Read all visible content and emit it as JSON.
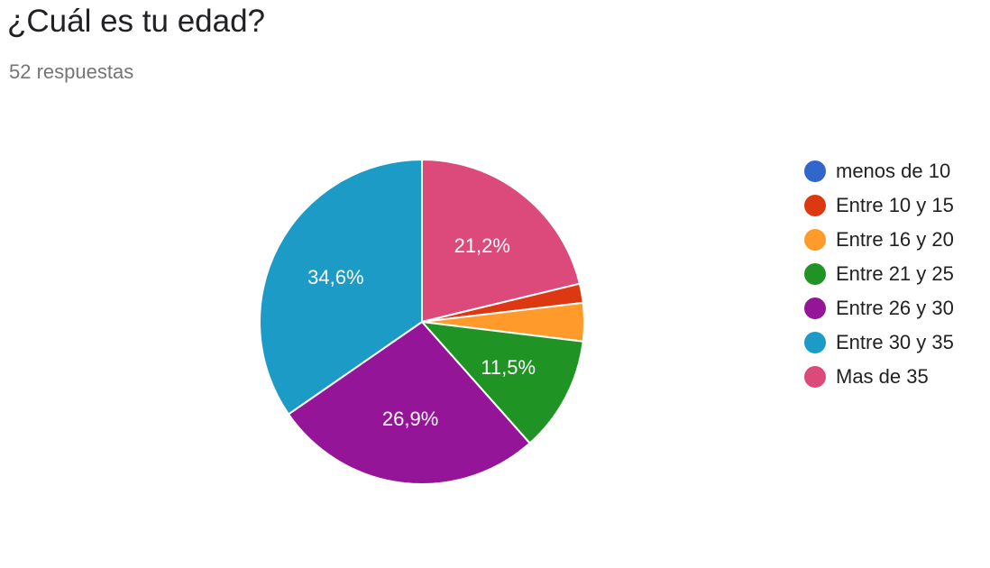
{
  "header": {
    "title": "¿Cuál es tu edad?",
    "responses": "52 respuestas"
  },
  "chart_data": {
    "type": "pie",
    "title": "¿Cuál es tu edad?",
    "subtitle": "52 respuestas",
    "legend_position": "right",
    "start_angle_deg": 90,
    "direction": "clockwise",
    "slices": [
      {
        "label": "Mas de 35",
        "value": 21.2,
        "display": "21,2%",
        "color": "#dc4a7c"
      },
      {
        "label": "menos de 10",
        "value": 0,
        "display": "",
        "color": "#3366cc"
      },
      {
        "label": "Entre 10 y 15",
        "value": 1.9,
        "display": "",
        "color": "#dc3912"
      },
      {
        "label": "Entre 16 y 20",
        "value": 3.8,
        "display": "",
        "color": "#ff9a2b"
      },
      {
        "label": "Entre 21 y 25",
        "value": 11.5,
        "display": "11,5%",
        "color": "#1f9424"
      },
      {
        "label": "Entre 26 y 30",
        "value": 26.9,
        "display": "26,9%",
        "color": "#951599"
      },
      {
        "label": "Entre 30 y 35",
        "value": 34.6,
        "display": "34,6%",
        "color": "#1c9bc6"
      }
    ],
    "legend": [
      {
        "label": "menos de 10",
        "color": "#3366cc"
      },
      {
        "label": "Entre 10 y 15",
        "color": "#dc3912"
      },
      {
        "label": "Entre 16 y 20",
        "color": "#ff9a2b"
      },
      {
        "label": "Entre 21 y 25",
        "color": "#1f9424"
      },
      {
        "label": "Entre 26 y 30",
        "color": "#951599"
      },
      {
        "label": "Entre 30 y 35",
        "color": "#1c9bc6"
      },
      {
        "label": "Mas de 35",
        "color": "#dc4a7c"
      }
    ]
  }
}
